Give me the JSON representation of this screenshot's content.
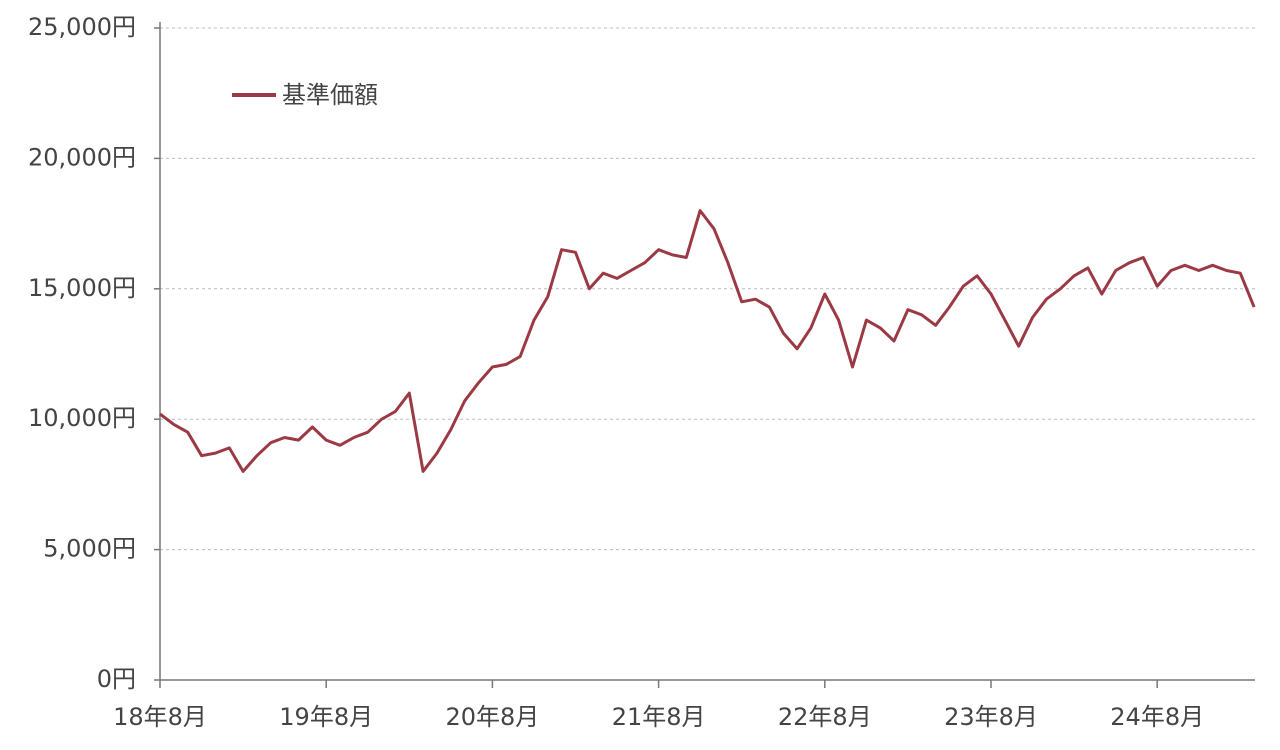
{
  "chart_data": {
    "type": "line",
    "categories": [
      "18年8月",
      null,
      null,
      null,
      null,
      null,
      null,
      null,
      null,
      null,
      null,
      null,
      "19年8月",
      null,
      null,
      null,
      null,
      null,
      null,
      null,
      null,
      null,
      null,
      null,
      "20年8月",
      null,
      null,
      null,
      null,
      null,
      null,
      null,
      null,
      null,
      null,
      null,
      "21年8月",
      null,
      null,
      null,
      null,
      null,
      null,
      null,
      null,
      null,
      null,
      null,
      "22年8月",
      null,
      null,
      null,
      null,
      null,
      null,
      null,
      null,
      null,
      null,
      null,
      "23年8月",
      null,
      null,
      null,
      null,
      null,
      null,
      null,
      null,
      null,
      null,
      null,
      "24年8月",
      null,
      null,
      null,
      null,
      null,
      null,
      null
    ],
    "series": [
      {
        "name": "基準価額",
        "color": "#9b3a44",
        "values": [
          10200,
          9800,
          9500,
          8600,
          8700,
          8900,
          8000,
          8600,
          9100,
          9300,
          9200,
          9700,
          9200,
          9000,
          9300,
          9500,
          10000,
          10300,
          11000,
          8000,
          8700,
          9600,
          10700,
          11400,
          12000,
          12100,
          12400,
          13800,
          14700,
          16500,
          16400,
          15000,
          15600,
          15400,
          15700,
          16000,
          16500,
          16300,
          16200,
          18000,
          17300,
          16000,
          14500,
          14600,
          14300,
          13300,
          12700,
          13500,
          14800,
          13800,
          12000,
          13800,
          13500,
          13000,
          14200,
          14000,
          13600,
          14300,
          15100,
          15500,
          14800,
          13800,
          12800,
          13900,
          14600,
          15000,
          15500,
          15800,
          14800,
          15700,
          16000,
          16200,
          15100,
          15700,
          15900,
          15700,
          15900,
          15700,
          15600,
          14300
        ]
      }
    ],
    "ylim": [
      0,
      25000
    ],
    "yticks": [
      {
        "value": 0,
        "label": "0円"
      },
      {
        "value": 5000,
        "label": "5,000円"
      },
      {
        "value": 10000,
        "label": "10,000円"
      },
      {
        "value": 15000,
        "label": "15,000円"
      },
      {
        "value": 20000,
        "label": "20,000円"
      },
      {
        "value": 25000,
        "label": "25,000円"
      }
    ],
    "grid": true,
    "legend": "upper left"
  }
}
